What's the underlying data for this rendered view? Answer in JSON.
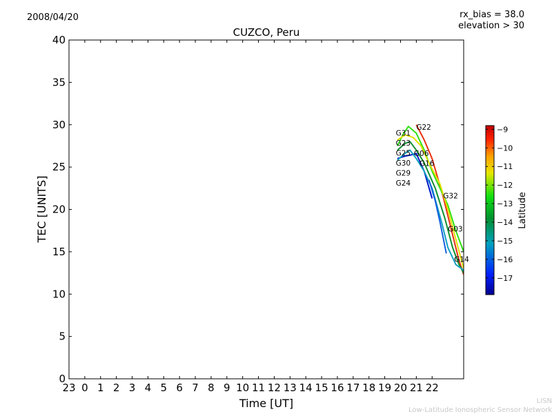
{
  "header": {
    "date": "2008/04/20",
    "rx_bias": "rx_bias = 38.0",
    "elevation": "elevation > 30"
  },
  "footer": {
    "lisn": "LISN",
    "network": "Low-Latitude Ionospheric Sensor Network"
  },
  "chart_data": {
    "type": "line",
    "title": "CUZCO, Peru",
    "xlabel": "Time [UT]",
    "ylabel": "TEC [UNITS]",
    "xlim": [
      -1,
      24
    ],
    "ylim": [
      0,
      40
    ],
    "xticks": [
      -1,
      0,
      1,
      2,
      3,
      4,
      5,
      6,
      7,
      8,
      9,
      10,
      11,
      12,
      13,
      14,
      15,
      16,
      17,
      18,
      19,
      20,
      21,
      22
    ],
    "xtick_labels": [
      "23",
      "0",
      "1",
      "2",
      "3",
      "4",
      "5",
      "6",
      "7",
      "8",
      "9",
      "10",
      "11",
      "12",
      "13",
      "14",
      "15",
      "16",
      "17",
      "18",
      "19",
      "20",
      "21",
      "22"
    ],
    "yticks": [
      0,
      5,
      10,
      15,
      20,
      25,
      30,
      35,
      40
    ],
    "grid": false,
    "colorbar": {
      "label": "Latitude",
      "range": [
        -17.9,
        -8.8
      ],
      "ticks": [
        -9,
        -10,
        -11,
        -12,
        -13,
        -14,
        -15,
        -16,
        -17
      ],
      "tick_labels": [
        "−9",
        "−10",
        "−11",
        "−12",
        "−13",
        "−14",
        "−15",
        "−16",
        "−17"
      ]
    },
    "series": [
      {
        "name": "G22",
        "color": "#e83010",
        "x": [
          21.0,
          21.5,
          22.0,
          22.7,
          23.3,
          23.7,
          24.0
        ],
        "y": [
          30.0,
          28.2,
          26.0,
          21.5,
          17.0,
          14.0,
          12.3
        ]
      },
      {
        "name": "green",
        "color": "#30e010",
        "x": [
          19.8,
          20.2,
          20.5,
          21.0,
          21.5,
          22.0,
          22.5,
          23.0,
          23.5,
          24.0
        ],
        "y": [
          27.5,
          29.0,
          29.8,
          29.0,
          27.0,
          24.5,
          22.5,
          20.5,
          17.5,
          15.0
        ]
      },
      {
        "name": "yellow",
        "color": "#e0e000",
        "x": [
          19.8,
          20.3,
          20.8,
          21.3,
          21.8,
          22.5,
          23.0,
          23.5,
          24.0
        ],
        "y": [
          28.2,
          28.8,
          28.5,
          27.5,
          25.5,
          23.0,
          20.0,
          16.5,
          13.0
        ]
      },
      {
        "name": "dkgreen",
        "color": "#109030",
        "x": [
          19.8,
          20.3,
          20.6,
          21.0,
          21.5,
          22.2,
          22.8,
          23.3,
          23.7,
          24.0
        ],
        "y": [
          27.0,
          27.8,
          28.0,
          27.0,
          25.5,
          22.5,
          19.0,
          15.5,
          13.5,
          12.5
        ]
      },
      {
        "name": "G24",
        "color": "#0018c8",
        "x": [
          19.8,
          20.3,
          20.6,
          21.0,
          21.5,
          22.0
        ],
        "y": [
          26.0,
          26.3,
          26.4,
          26.6,
          24.5,
          21.3
        ]
      },
      {
        "name": "cyan",
        "color": "#10a0c0",
        "x": [
          19.8,
          20.2,
          20.6,
          21.0,
          21.5,
          22.0,
          22.6,
          23.0,
          23.5,
          24.0
        ],
        "y": [
          25.8,
          26.5,
          27.0,
          26.0,
          24.5,
          22.5,
          18.5,
          15.5,
          13.5,
          12.8
        ]
      },
      {
        "name": "blue",
        "color": "#1060e0",
        "x": [
          21.8,
          22.2,
          22.5,
          22.9
        ],
        "y": [
          23.5,
          21.0,
          18.5,
          14.8
        ]
      }
    ],
    "annotations": [
      {
        "text": "G31",
        "x": 19.7,
        "y": 28.7
      },
      {
        "text": "G23",
        "x": 19.7,
        "y": 28.3
      },
      {
        "text": "G25",
        "x": 19.7,
        "y": 27.6
      },
      {
        "text": "G30",
        "x": 19.7,
        "y": 26.4
      },
      {
        "text": "G29",
        "x": 19.7,
        "y": 26.0
      },
      {
        "text": "G24",
        "x": 19.7,
        "y": 25.7
      },
      {
        "text": "G22",
        "x": 21.0,
        "y": 29.4
      },
      {
        "text": "G06",
        "x": 20.85,
        "y": 26.3
      },
      {
        "text": "G16",
        "x": 21.2,
        "y": 25.3
      },
      {
        "text": "G32",
        "x": 22.7,
        "y": 21.3
      },
      {
        "text": "G03",
        "x": 23.0,
        "y": 17.4
      },
      {
        "text": "G14",
        "x": 23.4,
        "y": 13.8
      }
    ]
  }
}
